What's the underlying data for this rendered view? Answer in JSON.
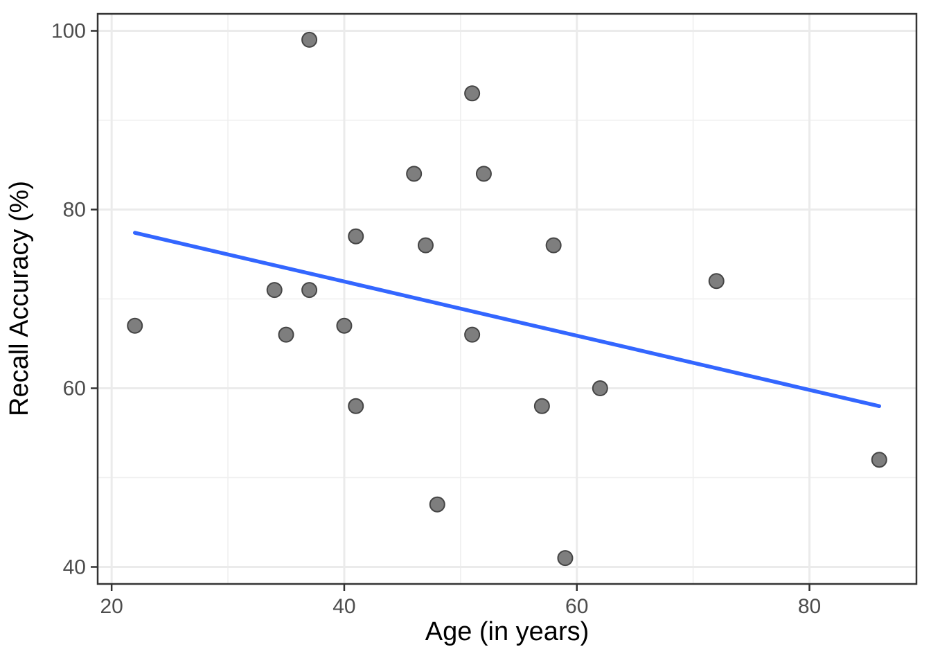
{
  "chart_data": {
    "type": "scatter",
    "title": "",
    "xlabel": "Age (in years)",
    "ylabel": "Recall Accuracy (%)",
    "points": [
      [
        22,
        67
      ],
      [
        34,
        71
      ],
      [
        35,
        66
      ],
      [
        37,
        71
      ],
      [
        37,
        99
      ],
      [
        40,
        67
      ],
      [
        41,
        58
      ],
      [
        41,
        77
      ],
      [
        46,
        84
      ],
      [
        47,
        76
      ],
      [
        48,
        47
      ],
      [
        51,
        66
      ],
      [
        51,
        93
      ],
      [
        52,
        84
      ],
      [
        57,
        58
      ],
      [
        58,
        76
      ],
      [
        59,
        41
      ],
      [
        62,
        60
      ],
      [
        72,
        72
      ],
      [
        86,
        52
      ]
    ],
    "x_ticks": [
      20,
      40,
      60,
      80
    ],
    "y_ticks": [
      40,
      60,
      80,
      100
    ],
    "x_minor_gridlines": [
      30,
      50,
      70
    ],
    "y_minor_gridlines": [
      50,
      70,
      90
    ],
    "xlim": [
      18.8,
      89.2
    ],
    "ylim": [
      38.1,
      101.9
    ],
    "grid": "major and minor gridlines, light gray on white panel, dark panel border",
    "legend": "none",
    "trend_line": {
      "type": "linear least-squares fit",
      "x_start": 22,
      "y_start": 77.4,
      "x_end": 86,
      "y_end": 58.0,
      "slope": -0.3,
      "intercept": 84.0
    },
    "colors": {
      "point_fill": "#7e7e7e",
      "point_stroke": "#454545",
      "trend": "#3366ff",
      "grid_major": "#ebebeb",
      "grid_minor": "#efefef",
      "panel_border": "#333333",
      "tick_mark": "#333333",
      "tick_label": "#4d4d4d",
      "axis_title": "#000000",
      "panel_background": "#ffffff",
      "figure_background": "#ffffff"
    }
  }
}
